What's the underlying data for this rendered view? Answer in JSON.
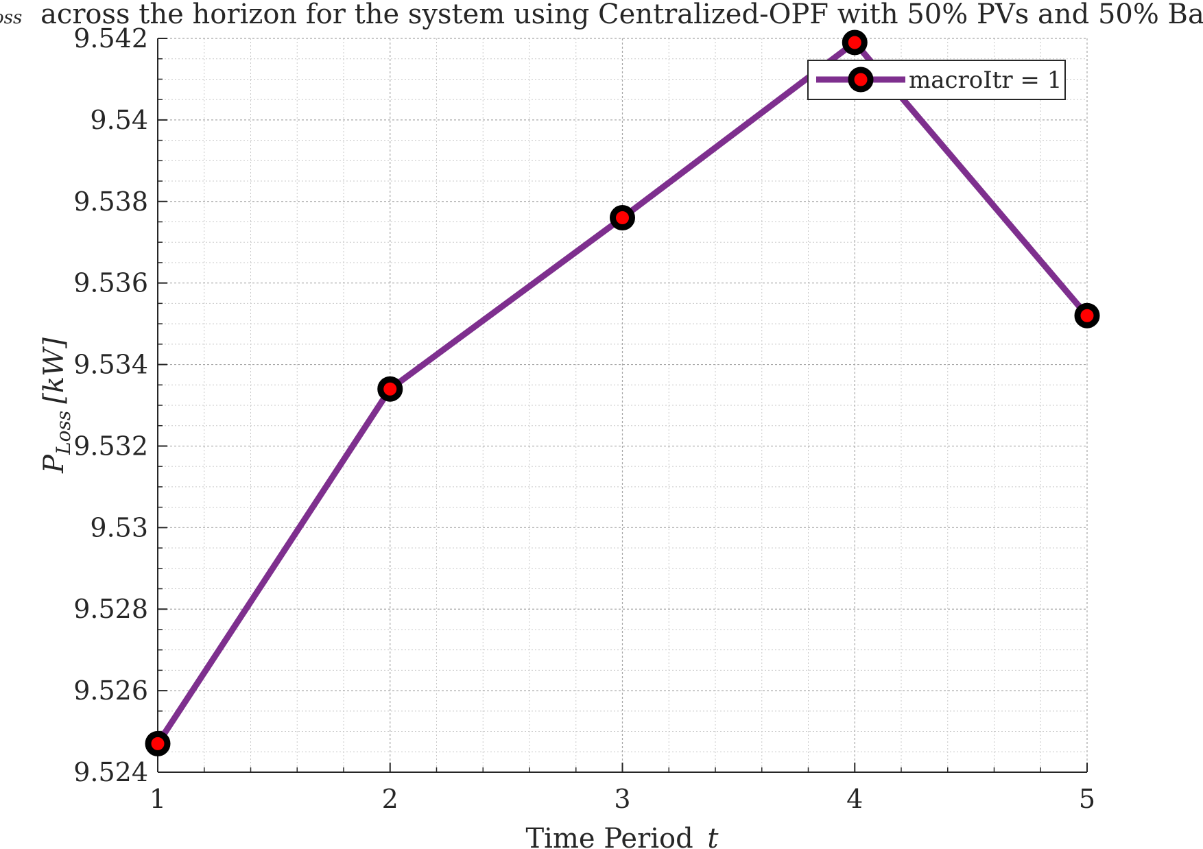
{
  "chart_data": {
    "type": "line",
    "title_prefix": "oss",
    "title": "across the horizon for the system using Centralized-OPF with 50% PVs and 50% Ba",
    "xlabel": "Time Period",
    "xlabel_var": "t",
    "ylabel_main": "P",
    "ylabel_sub": "Loss",
    "ylabel_unit": "[kW]",
    "x": [
      1,
      2,
      3,
      4,
      5
    ],
    "xticks": [
      "1",
      "2",
      "3",
      "4",
      "5"
    ],
    "xlim": [
      1,
      5
    ],
    "ylim": [
      9.524,
      9.542
    ],
    "yticks": [
      "9.524",
      "9.526",
      "9.528",
      "9.53",
      "9.532",
      "9.534",
      "9.536",
      "9.538",
      "9.54",
      "9.542"
    ],
    "grid": true,
    "minor_grid": true,
    "legend_position": "top-right",
    "series": [
      {
        "name": "macroItr = 1",
        "values": [
          9.5247,
          9.5334,
          9.5376,
          9.5419,
          9.5352
        ],
        "line_color": "#7e2f8e",
        "marker_edge_color": "#000000",
        "marker_face_color": "#ff0000"
      }
    ]
  }
}
